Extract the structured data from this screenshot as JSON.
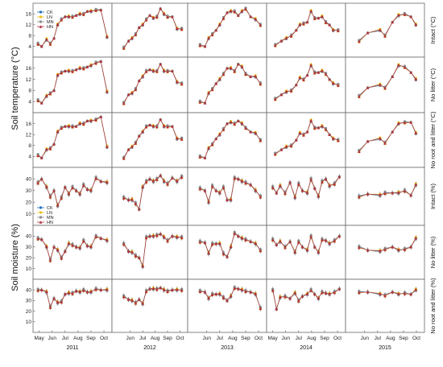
{
  "chart_data": {
    "type": "line",
    "x_month_labels": [
      "May",
      "Jun",
      "Jul",
      "Aug",
      "Sep",
      "Oct"
    ],
    "years": [
      "2011",
      "2012",
      "2013",
      "2014",
      "2015"
    ],
    "y_axis_labels": {
      "temperature": "Soil temperature (°C)",
      "moisture": "Soil moisture (%)"
    },
    "row_labels": [
      "Intact (°C)",
      "No litter (°C)",
      "No root and litter (°C)",
      "Intact (%)",
      "No litter (%)",
      "No root and litter (%)"
    ],
    "temp_ticks": [
      "4",
      "8",
      "12",
      "16"
    ],
    "moist_ticks": [
      "10",
      "20",
      "30",
      "40"
    ],
    "temp_ylim": [
      0,
      20
    ],
    "moist_ylim": [
      0,
      50
    ],
    "legend": [
      {
        "name": "CK",
        "color": "#1f6fc0",
        "marker": "circle"
      },
      {
        "name": "LN",
        "color": "#e8c21a",
        "marker": "circle"
      },
      {
        "name": "MN",
        "color": "#8a8a8a",
        "marker": "circle"
      },
      {
        "name": "HN",
        "color": "#b22d3a",
        "marker": "triangle"
      }
    ],
    "temperature_series_x": [
      [
        4.9,
        5.2,
        5.6,
        5.9,
        6.2,
        6.5,
        6.8,
        7.1,
        7.4,
        7.7,
        8.0,
        8.3,
        8.6,
        8.9,
        9.2,
        9.6,
        10.0,
        10.5
      ],
      [
        5.5,
        5.9,
        6.2,
        6.5,
        6.8,
        7.1,
        7.4,
        7.7,
        8.0,
        8.3,
        8.6,
        8.9,
        9.2,
        9.6,
        10.0,
        10.4
      ],
      [
        5.5,
        5.9,
        6.2,
        6.5,
        6.8,
        7.1,
        7.4,
        7.7,
        8.0,
        8.3,
        8.6,
        8.9,
        9.2,
        9.6,
        10.0,
        10.4
      ],
      [
        5.2,
        5.7,
        6.1,
        6.5,
        6.9,
        7.2,
        7.5,
        7.8,
        8.1,
        8.4,
        8.7,
        9.0,
        9.3,
        9.6,
        9.9,
        10.3
      ],
      [
        5.6,
        6.3,
        7.3,
        7.7,
        8.3,
        8.8,
        9.3,
        9.8,
        10.2
      ]
    ],
    "temperature_intact": [
      [
        5,
        4,
        6.5,
        5,
        7,
        12,
        14,
        15,
        15,
        15,
        15.5,
        16,
        16,
        17,
        17,
        17.5,
        17.5,
        7.5
      ],
      [
        3.5,
        6,
        7,
        8.5,
        11,
        12,
        14,
        15.5,
        14.5,
        15,
        18,
        16,
        15,
        15,
        10.5,
        10.5
      ],
      [
        4.5,
        4,
        7,
        8.5,
        10,
        12,
        14.5,
        16.5,
        17,
        17,
        15.5,
        17,
        18,
        15,
        14,
        12
      ],
      [
        4.5,
        6,
        7,
        8,
        10,
        12,
        12.5,
        13,
        17,
        14.5,
        14.5,
        15,
        13,
        12,
        10,
        10
      ],
      [
        6,
        9,
        10,
        8,
        13,
        15.5,
        16,
        15,
        12
      ]
    ],
    "temperature_no_litter": [
      [
        4.5,
        3.5,
        6,
        7,
        8,
        13.5,
        14.5,
        15,
        15,
        15,
        15.5,
        16,
        16,
        16.5,
        17,
        18,
        18.5,
        7.5
      ],
      [
        3.5,
        6.5,
        7,
        8.5,
        11.5,
        13,
        15,
        15.5,
        15,
        15,
        17.5,
        15,
        15,
        15,
        11,
        10.5
      ],
      [
        4,
        3.5,
        7,
        8.5,
        10.5,
        12,
        14,
        16,
        16,
        15,
        17.5,
        16.5,
        14,
        13,
        13,
        10.5
      ],
      [
        5,
        6.5,
        7.5,
        8,
        10,
        12.5,
        12,
        13.5,
        17,
        14.5,
        14.5,
        15,
        14,
        12,
        10.5,
        10
      ],
      [
        6,
        9,
        10,
        9,
        13,
        17,
        16.5,
        14.5,
        12
      ]
    ],
    "temperature_no_root_litter": [
      [
        4.5,
        3.5,
        6.5,
        7,
        8.5,
        13,
        14.5,
        15,
        15,
        15,
        15,
        16,
        16,
        17,
        17,
        17.5,
        18.5,
        7.5
      ],
      [
        3.5,
        6.5,
        7.5,
        9,
        11.5,
        13,
        15,
        15.5,
        15,
        15,
        17.5,
        15,
        15,
        15,
        10.5,
        10.5
      ],
      [
        4,
        3.5,
        7,
        8.5,
        10.5,
        12,
        14,
        16,
        16.5,
        16,
        17,
        16,
        14.5,
        13,
        12.5,
        10
      ],
      [
        5,
        6.5,
        7.5,
        8,
        10,
        12.5,
        12,
        13,
        17,
        14.5,
        14.5,
        15,
        14,
        12,
        10.5,
        10
      ],
      [
        6,
        9.5,
        10.5,
        9,
        13,
        16,
        16.5,
        16.5,
        12.5
      ]
    ],
    "moisture_series_x": [
      [
        4.9,
        5.2,
        5.6,
        5.9,
        6.2,
        6.5,
        6.8,
        7.1,
        7.4,
        7.7,
        8.0,
        8.3,
        8.6,
        8.9,
        9.2,
        9.6,
        10.0,
        10.5
      ],
      [
        5.5,
        5.9,
        6.2,
        6.5,
        6.8,
        7.1,
        7.4,
        7.7,
        8.0,
        8.3,
        8.6,
        8.9,
        9.2,
        9.6,
        10.0,
        10.4
      ],
      [
        5.5,
        5.9,
        6.2,
        6.5,
        6.8,
        7.1,
        7.4,
        7.7,
        8.0,
        8.3,
        8.6,
        8.9,
        9.2,
        9.6,
        10.0,
        10.4
      ],
      [
        5.0,
        5.3,
        5.6,
        6.0,
        6.4,
        6.8,
        7.1,
        7.4,
        7.8,
        8.1,
        8.4,
        8.7,
        9.0,
        9.3,
        9.6,
        10.0,
        10.4
      ],
      [
        5.6,
        6.3,
        7.3,
        7.7,
        8.3,
        8.8,
        9.3,
        9.8,
        10.2
      ]
    ],
    "moisture_intact": [
      [
        37,
        40,
        33,
        25,
        30,
        17,
        24,
        33,
        27,
        33,
        30,
        27,
        35,
        31,
        30,
        41,
        38,
        37
      ],
      [
        24,
        22,
        22,
        19,
        14,
        33,
        38,
        40,
        38,
        40,
        43,
        38,
        36,
        41,
        38,
        42
      ],
      [
        32,
        30,
        20,
        34,
        30,
        28,
        33,
        22,
        22,
        41,
        40,
        38,
        37,
        35,
        30,
        25
      ],
      [
        33,
        28,
        34,
        28,
        37,
        24,
        36,
        30,
        28,
        40,
        32,
        25,
        38,
        40,
        34,
        36,
        42
      ],
      [
        25,
        27,
        26,
        28,
        28,
        28,
        30,
        26,
        35
      ]
    ],
    "moisture_no_litter": [
      [
        38,
        37,
        30,
        18,
        30,
        27,
        20,
        26,
        33,
        32,
        30,
        29,
        36,
        31,
        30,
        40,
        38,
        36
      ],
      [
        33,
        26,
        25,
        22,
        20,
        12,
        39,
        40,
        40,
        41,
        42,
        39,
        36,
        40,
        39,
        39
      ],
      [
        35,
        34,
        24,
        33,
        33,
        33,
        24,
        21,
        30,
        43,
        40,
        38,
        37,
        35,
        33,
        27
      ],
      [
        37,
        32,
        35,
        30,
        35,
        25,
        35,
        30,
        27,
        40,
        30,
        25,
        37,
        36,
        33,
        36,
        40
      ],
      [
        30,
        27,
        26,
        28,
        30,
        27,
        28,
        30,
        38
      ]
    ],
    "moisture_no_root_litter": [
      [
        40,
        40,
        38,
        24,
        32,
        28,
        29,
        36,
        37,
        37,
        39,
        38,
        40,
        38,
        38,
        41,
        40,
        40
      ],
      [
        34,
        31,
        30,
        28,
        31,
        27,
        39,
        41,
        41,
        41,
        42,
        40,
        39,
        40,
        40,
        40
      ],
      [
        39,
        38,
        32,
        36,
        36,
        36,
        33,
        30,
        34,
        42,
        41,
        40,
        39,
        38,
        36,
        23
      ],
      [
        40,
        22,
        33,
        34,
        32,
        37,
        30,
        34,
        36,
        40,
        36,
        32,
        38,
        37,
        36,
        38,
        41
      ],
      [
        38,
        38,
        36,
        35,
        38,
        36,
        37,
        36,
        40
      ]
    ]
  }
}
